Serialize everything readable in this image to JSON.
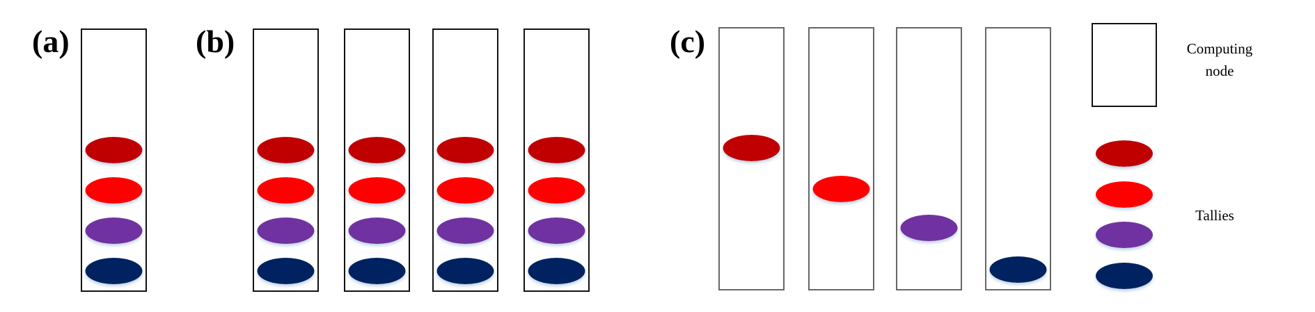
{
  "panels": [
    {
      "label": "(a)",
      "nodes": [
        [
          0,
          1,
          2,
          3
        ]
      ]
    },
    {
      "label": "(b)",
      "nodes": [
        [
          0,
          1,
          2,
          3
        ],
        [
          0,
          1,
          2,
          3
        ],
        [
          0,
          1,
          2,
          3
        ],
        [
          0,
          1,
          2,
          3
        ]
      ]
    },
    {
      "label": "(c)",
      "nodes": [
        [
          0
        ],
        [
          1
        ],
        [
          2
        ],
        [
          3
        ]
      ]
    }
  ],
  "tally_colors": [
    "#c00000",
    "#ff0000",
    "#7030a0",
    "#002060"
  ],
  "legend": {
    "node_label_line1": "Computing",
    "node_label_line2": "node",
    "tallies_label": "Tallies"
  }
}
